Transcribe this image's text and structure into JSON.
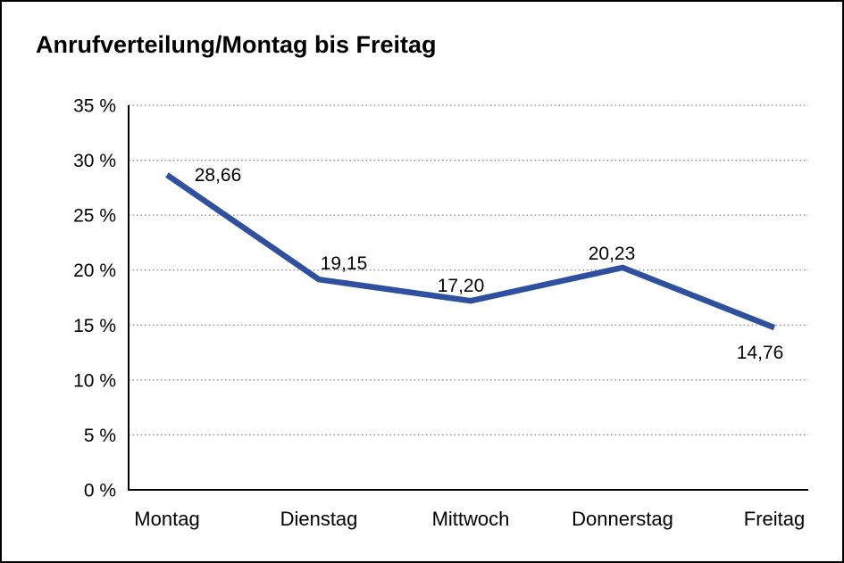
{
  "page": {
    "title": "Anrufverteilung/Montag bis Freitag"
  },
  "chart_data": {
    "type": "line",
    "title": "Anrufverteilung/Montag bis Freitag",
    "categories": [
      "Montag",
      "Dienstag",
      "Mittwoch",
      "Donnerstag",
      "Freitag"
    ],
    "series": [
      {
        "name": "Anrufverteilung",
        "values": [
          28.66,
          19.15,
          17.2,
          20.23,
          14.76
        ],
        "point_labels": [
          "28,66",
          "19,15",
          "17,20",
          "20,23",
          "14,76"
        ]
      }
    ],
    "ylim": [
      0,
      35
    ],
    "y_step": 5,
    "y_tick_labels": [
      "35 %",
      "30 %",
      "25 %",
      "20 %",
      "15 %",
      "10 %",
      "5 %",
      "0 %"
    ],
    "xlabel": "",
    "ylabel": "",
    "grid": "horizontal-dotted",
    "legend": "none",
    "colors": {
      "line": "#2F509E",
      "grid": "#8a8a8a",
      "axis": "#000000",
      "text": "#000000",
      "background": "#ffffff",
      "frame_border": "#000000"
    }
  }
}
